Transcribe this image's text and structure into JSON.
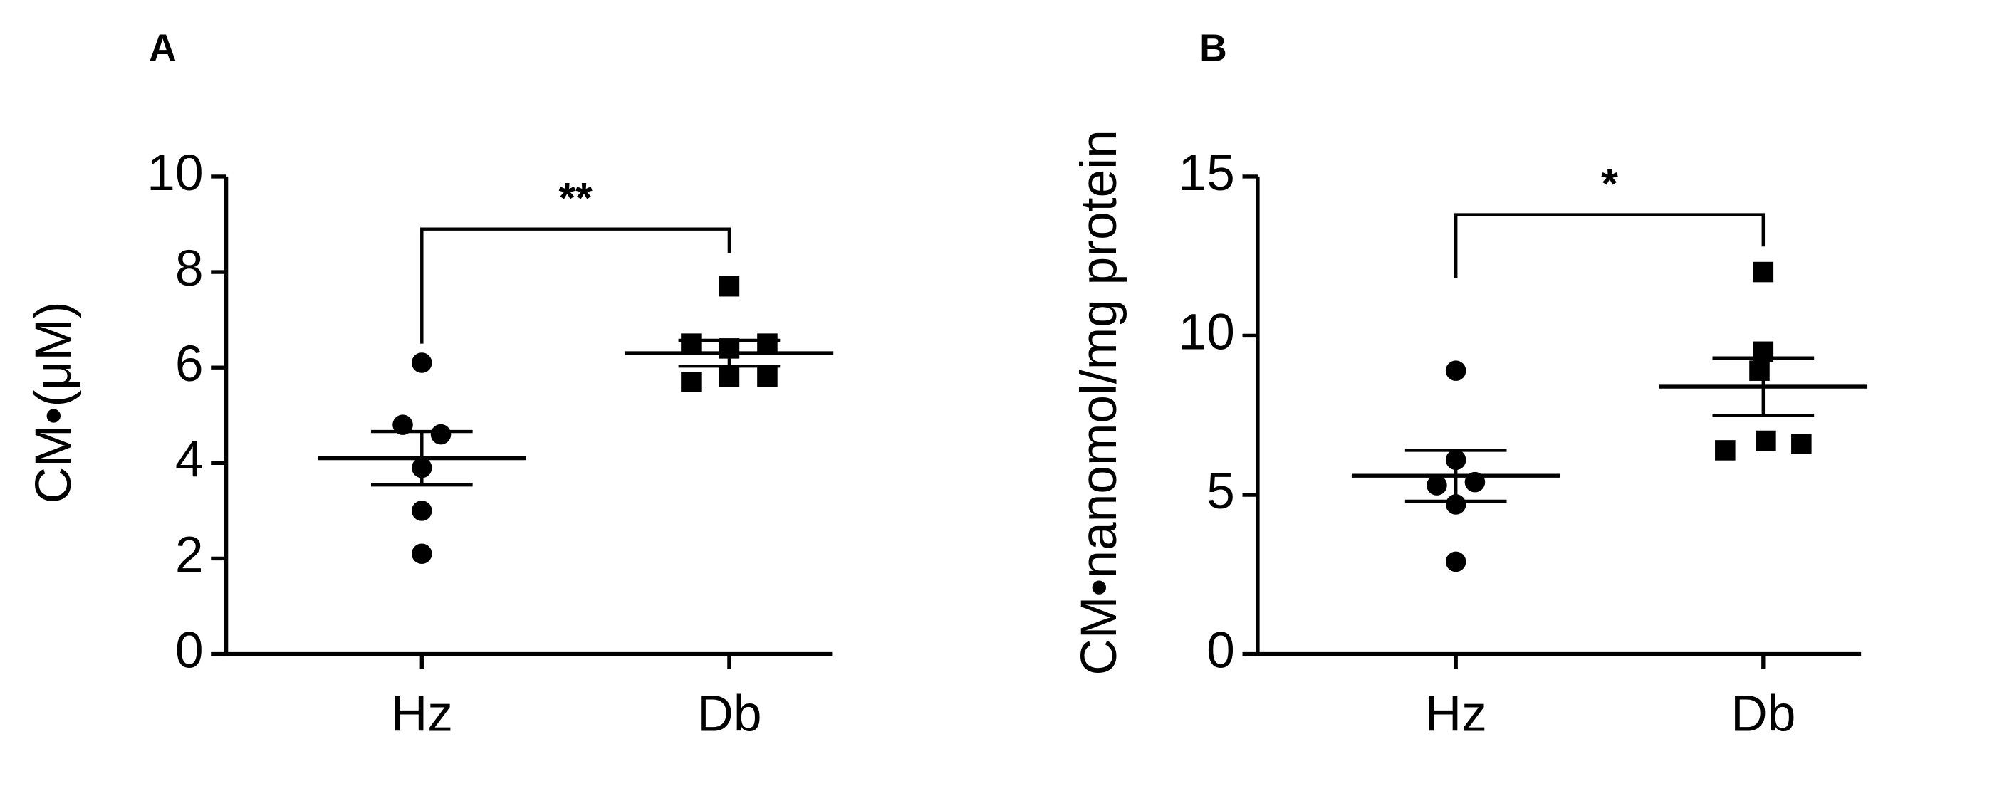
{
  "chart_data": [
    {
      "type": "dot",
      "panel": "A",
      "ylabel": "CM•(μM)",
      "categories": [
        "Hz",
        "Db"
      ],
      "markers": [
        "circle",
        "square"
      ],
      "color": "#000000",
      "points": [
        [
          6.1,
          4.8,
          4.6,
          3.9,
          3.0,
          2.1
        ],
        [
          7.7,
          6.5,
          6.4,
          6.5,
          5.7,
          5.8,
          5.8
        ]
      ],
      "means": [
        4.1,
        6.3
      ],
      "errors": [
        0.56,
        0.27
      ],
      "ylim": [
        0,
        10
      ],
      "yticks": [
        0,
        2,
        4,
        6,
        8,
        10
      ],
      "annotations": [
        {
          "text": "**",
          "y": 8.9,
          "legs": [
            6.5,
            8.4
          ]
        }
      ]
    },
    {
      "type": "dot",
      "panel": "B",
      "ylabel": "CM•nanomol/mg protein",
      "categories": [
        "Hz",
        "Db"
      ],
      "markers": [
        "circle",
        "square"
      ],
      "color": "#000000",
      "points": [
        [
          8.9,
          6.1,
          5.3,
          5.4,
          4.7,
          2.9
        ],
        [
          12.0,
          9.5,
          8.9,
          6.4,
          6.7,
          6.6
        ]
      ],
      "means": [
        5.6,
        8.4
      ],
      "errors": [
        0.8,
        0.9
      ],
      "ylim": [
        0,
        15
      ],
      "yticks": [
        0,
        5,
        10,
        15
      ],
      "annotations": [
        {
          "text": "*",
          "y": 13.8,
          "legs": [
            11.8,
            12.8
          ]
        }
      ]
    }
  ]
}
